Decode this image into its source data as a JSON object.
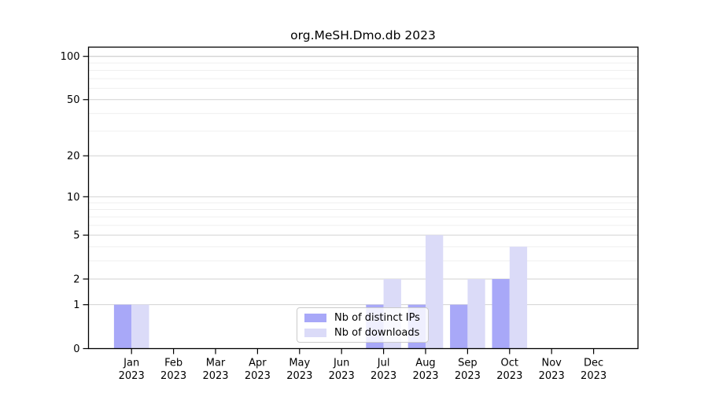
{
  "chart_data": {
    "type": "bar",
    "title": "org.MeSH.Dmo.db 2023",
    "year_label": "2023",
    "categories": [
      "Jan",
      "Feb",
      "Mar",
      "Apr",
      "May",
      "Jun",
      "Jul",
      "Aug",
      "Sep",
      "Oct",
      "Nov",
      "Dec"
    ],
    "series": [
      {
        "name": "Nb of distinct IPs",
        "color": "#a8a8f8",
        "values": [
          1,
          0,
          0,
          0,
          0,
          0,
          1,
          1,
          1,
          2,
          0,
          0
        ]
      },
      {
        "name": "Nb of downloads",
        "color": "#dbdbf8",
        "values": [
          1,
          0,
          0,
          0,
          0,
          0,
          2,
          5,
          2,
          4,
          0,
          0
        ]
      }
    ],
    "xlabel": "",
    "ylabel": "",
    "y_axis": {
      "scale": "log1p",
      "tick_labels": [
        "0",
        "1",
        "2",
        "5",
        "10",
        "20",
        "50",
        "100"
      ],
      "major_ticks": [
        0,
        1,
        2,
        5,
        10,
        20,
        50,
        100
      ],
      "minor_gridlines": [
        3,
        4,
        6,
        7,
        8,
        9,
        30,
        40,
        60,
        70,
        80,
        90
      ],
      "ylim": [
        0,
        115
      ]
    },
    "grid": true,
    "legend_position": "bottom-center",
    "colors": {
      "frame": "#000000",
      "major_grid": "#d2d2d2",
      "top_grid": "#c4c4c4",
      "minor_grid": "#efefef",
      "text": "#000000"
    }
  }
}
